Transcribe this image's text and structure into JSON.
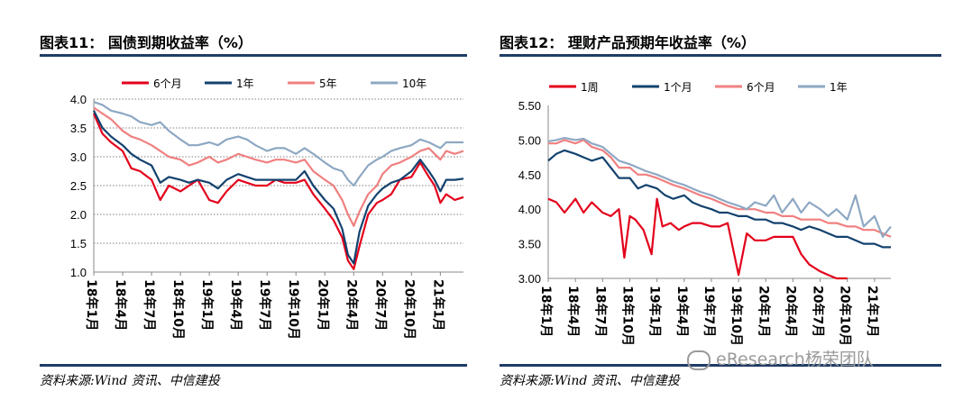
{
  "watermark": "eResearch杨荣团队",
  "charts": [
    {
      "title": "图表11： 国债到期收益率（%）",
      "source": "资料来源:Wind 资讯、中信建投",
      "chart_data": {
        "type": "line",
        "ylim": [
          1.0,
          4.0
        ],
        "yticks": [
          "1.0",
          "1.5",
          "2.0",
          "2.5",
          "3.0",
          "3.5",
          "4.0"
        ],
        "x_ticks": [
          "18年1月",
          "18年4月",
          "18年7月",
          "18年10月",
          "19年1月",
          "19年4月",
          "19年7月",
          "19年10月",
          "20年1月",
          "20年4月",
          "20年7月",
          "20年10月",
          "21年1月"
        ],
        "x_range": [
          0,
          12.8
        ],
        "grid": true,
        "legend_position": "top",
        "series": [
          {
            "name": "6个月",
            "color": "#e3001b",
            "x": [
              0,
              0.3,
              0.6,
              1,
              1.3,
              1.6,
              2,
              2.3,
              2.6,
              3,
              3.3,
              3.6,
              4,
              4.3,
              4.6,
              5,
              5.3,
              5.6,
              6,
              6.3,
              6.6,
              7,
              7.3,
              7.6,
              8,
              8.3,
              8.6,
              8.8,
              9,
              9.2,
              9.5,
              9.8,
              10,
              10.3,
              10.6,
              11,
              11.3,
              11.6,
              11.8,
              12,
              12.2,
              12.5,
              12.8
            ],
            "y": [
              3.75,
              3.4,
              3.25,
              3.1,
              2.8,
              2.75,
              2.6,
              2.25,
              2.5,
              2.4,
              2.5,
              2.6,
              2.25,
              2.2,
              2.4,
              2.6,
              2.55,
              2.5,
              2.5,
              2.6,
              2.55,
              2.55,
              2.6,
              2.35,
              2.1,
              1.9,
              1.6,
              1.2,
              1.05,
              1.45,
              2.0,
              2.2,
              2.25,
              2.35,
              2.6,
              2.65,
              2.9,
              2.65,
              2.5,
              2.2,
              2.35,
              2.25,
              2.3
            ]
          },
          {
            "name": "1年",
            "color": "#13426e",
            "x": [
              0,
              0.3,
              0.6,
              1,
              1.3,
              1.6,
              2,
              2.3,
              2.6,
              3,
              3.3,
              3.6,
              4,
              4.3,
              4.6,
              5,
              5.3,
              5.6,
              6,
              6.3,
              6.6,
              7,
              7.3,
              7.6,
              8,
              8.3,
              8.6,
              8.8,
              9,
              9.2,
              9.5,
              9.8,
              10,
              10.3,
              10.6,
              11,
              11.3,
              11.6,
              11.8,
              12,
              12.2,
              12.5,
              12.8
            ],
            "y": [
              3.8,
              3.5,
              3.35,
              3.2,
              3.05,
              2.95,
              2.85,
              2.55,
              2.65,
              2.6,
              2.55,
              2.6,
              2.55,
              2.45,
              2.6,
              2.7,
              2.65,
              2.6,
              2.6,
              2.6,
              2.6,
              2.6,
              2.75,
              2.5,
              2.25,
              2.1,
              1.75,
              1.3,
              1.15,
              1.7,
              2.15,
              2.35,
              2.45,
              2.55,
              2.6,
              2.75,
              2.95,
              2.75,
              2.6,
              2.4,
              2.6,
              2.6,
              2.62
            ]
          },
          {
            "name": "5年",
            "color": "#f08080",
            "x": [
              0,
              0.3,
              0.6,
              1,
              1.3,
              1.6,
              2,
              2.3,
              2.6,
              3,
              3.3,
              3.6,
              4,
              4.3,
              4.6,
              5,
              5.3,
              5.6,
              6,
              6.3,
              6.6,
              7,
              7.3,
              7.6,
              8,
              8.3,
              8.6,
              8.8,
              9,
              9.2,
              9.5,
              9.8,
              10,
              10.3,
              10.6,
              11,
              11.3,
              11.6,
              11.8,
              12,
              12.2,
              12.5,
              12.8
            ],
            "y": [
              3.85,
              3.75,
              3.65,
              3.45,
              3.35,
              3.3,
              3.2,
              3.1,
              3.0,
              2.95,
              2.85,
              2.9,
              3.0,
              2.9,
              2.95,
              3.05,
              3.0,
              2.95,
              2.9,
              2.95,
              2.95,
              2.9,
              2.95,
              2.75,
              2.6,
              2.5,
              2.25,
              2.0,
              1.8,
              2.05,
              2.35,
              2.5,
              2.7,
              2.85,
              2.9,
              3.0,
              3.1,
              3.15,
              3.05,
              2.95,
              3.1,
              3.05,
              3.1
            ]
          },
          {
            "name": "10年",
            "color": "#8ea8c3",
            "x": [
              0,
              0.3,
              0.6,
              1,
              1.3,
              1.6,
              2,
              2.3,
              2.6,
              3,
              3.3,
              3.6,
              4,
              4.3,
              4.6,
              5,
              5.3,
              5.6,
              6,
              6.3,
              6.6,
              7,
              7.3,
              7.6,
              8,
              8.3,
              8.6,
              8.8,
              9,
              9.2,
              9.5,
              9.8,
              10,
              10.3,
              10.6,
              11,
              11.3,
              11.6,
              11.8,
              12,
              12.2,
              12.5,
              12.8
            ],
            "y": [
              3.95,
              3.9,
              3.8,
              3.75,
              3.7,
              3.6,
              3.55,
              3.6,
              3.45,
              3.3,
              3.2,
              3.2,
              3.25,
              3.2,
              3.3,
              3.35,
              3.3,
              3.2,
              3.1,
              3.15,
              3.15,
              3.05,
              3.15,
              3.05,
              2.9,
              2.8,
              2.75,
              2.6,
              2.5,
              2.65,
              2.85,
              2.95,
              3.0,
              3.1,
              3.15,
              3.2,
              3.3,
              3.25,
              3.2,
              3.15,
              3.25,
              3.25,
              3.25
            ]
          }
        ]
      }
    },
    {
      "title": "图表12： 理财产品预期年收益率（%）",
      "source": "资料来源:Wind 资讯、中信建投",
      "chart_data": {
        "type": "line",
        "ylim": [
          3.0,
          5.5
        ],
        "yticks": [
          "3.00",
          "3.50",
          "4.00",
          "4.50",
          "5.00",
          "5.50"
        ],
        "x_ticks": [
          "18年1月",
          "18年4月",
          "18年7月",
          "18年10月",
          "19年1月",
          "19年4月",
          "19年7月",
          "19年10月",
          "20年1月",
          "20年4月",
          "20年7月",
          "20年10月",
          "21年1月"
        ],
        "x_range": [
          0,
          12.6
        ],
        "grid": false,
        "legend_position": "top",
        "series": [
          {
            "name": "1周",
            "color": "#e3001b",
            "x": [
              0,
              0.3,
              0.6,
              1,
              1.3,
              1.6,
              2,
              2.3,
              2.6,
              2.8,
              3.0,
              3.2,
              3.5,
              3.8,
              4.0,
              4.2,
              4.5,
              4.8,
              5,
              5.3,
              5.6,
              6,
              6.3,
              6.6,
              7,
              7.3,
              7.6,
              8,
              8.3,
              8.6,
              9,
              9.3,
              9.6,
              10,
              10.3,
              10.6,
              11
            ],
            "y": [
              4.15,
              4.1,
              3.95,
              4.15,
              3.95,
              4.1,
              3.95,
              3.9,
              4.0,
              3.3,
              3.9,
              3.85,
              3.7,
              3.35,
              4.15,
              3.75,
              3.8,
              3.7,
              3.75,
              3.8,
              3.8,
              3.75,
              3.75,
              3.8,
              3.05,
              3.65,
              3.55,
              3.55,
              3.6,
              3.6,
              3.6,
              3.35,
              3.2,
              3.1,
              3.05,
              3.0,
              3.0
            ]
          },
          {
            "name": "1个月",
            "color": "#13426e",
            "x": [
              0,
              0.3,
              0.6,
              1,
              1.3,
              1.6,
              2,
              2.3,
              2.6,
              3,
              3.3,
              3.6,
              4,
              4.3,
              4.6,
              5,
              5.3,
              5.6,
              6,
              6.3,
              6.6,
              7,
              7.3,
              7.6,
              8,
              8.3,
              8.6,
              9,
              9.3,
              9.6,
              10,
              10.3,
              10.6,
              11,
              11.3,
              11.6,
              12,
              12.3,
              12.6
            ],
            "y": [
              4.7,
              4.8,
              4.85,
              4.8,
              4.75,
              4.7,
              4.75,
              4.6,
              4.45,
              4.45,
              4.3,
              4.35,
              4.3,
              4.2,
              4.15,
              4.2,
              4.1,
              4.05,
              4.0,
              3.95,
              3.95,
              3.9,
              3.9,
              3.85,
              3.85,
              3.8,
              3.8,
              3.75,
              3.7,
              3.75,
              3.7,
              3.65,
              3.6,
              3.6,
              3.55,
              3.5,
              3.5,
              3.45,
              3.45
            ]
          },
          {
            "name": "6个月",
            "color": "#f08080",
            "x": [
              0,
              0.3,
              0.6,
              1,
              1.3,
              1.6,
              2,
              2.3,
              2.6,
              3,
              3.3,
              3.6,
              4,
              4.3,
              4.6,
              5,
              5.3,
              5.6,
              6,
              6.3,
              6.6,
              7,
              7.3,
              7.6,
              8,
              8.3,
              8.6,
              9,
              9.3,
              9.6,
              10,
              10.3,
              10.6,
              11,
              11.3,
              11.6,
              12,
              12.3,
              12.6
            ],
            "y": [
              4.95,
              4.95,
              5.0,
              4.95,
              5.0,
              4.9,
              4.85,
              4.75,
              4.6,
              4.6,
              4.5,
              4.5,
              4.45,
              4.4,
              4.35,
              4.3,
              4.25,
              4.2,
              4.15,
              4.1,
              4.05,
              4.0,
              4.0,
              4.0,
              3.95,
              3.95,
              3.9,
              3.9,
              3.85,
              3.85,
              3.85,
              3.8,
              3.8,
              3.75,
              3.75,
              3.7,
              3.7,
              3.65,
              3.6
            ]
          },
          {
            "name": "1年",
            "color": "#8ea8c3",
            "x": [
              0,
              0.3,
              0.6,
              1,
              1.3,
              1.6,
              2,
              2.3,
              2.6,
              3,
              3.3,
              3.6,
              4,
              4.3,
              4.6,
              5,
              5.3,
              5.6,
              6,
              6.3,
              6.6,
              7,
              7.3,
              7.6,
              8,
              8.3,
              8.6,
              9,
              9.3,
              9.6,
              10,
              10.3,
              10.6,
              11,
              11.3,
              11.6,
              12,
              12.3,
              12.6
            ],
            "y": [
              4.98,
              5.0,
              5.03,
              5.0,
              5.02,
              4.95,
              4.9,
              4.8,
              4.7,
              4.65,
              4.6,
              4.55,
              4.5,
              4.45,
              4.4,
              4.35,
              4.3,
              4.25,
              4.2,
              4.15,
              4.1,
              4.05,
              4.0,
              4.1,
              4.05,
              4.2,
              3.95,
              4.15,
              3.95,
              4.1,
              4.0,
              3.9,
              4.0,
              3.85,
              4.2,
              3.75,
              3.9,
              3.6,
              3.75
            ]
          }
        ]
      }
    }
  ]
}
